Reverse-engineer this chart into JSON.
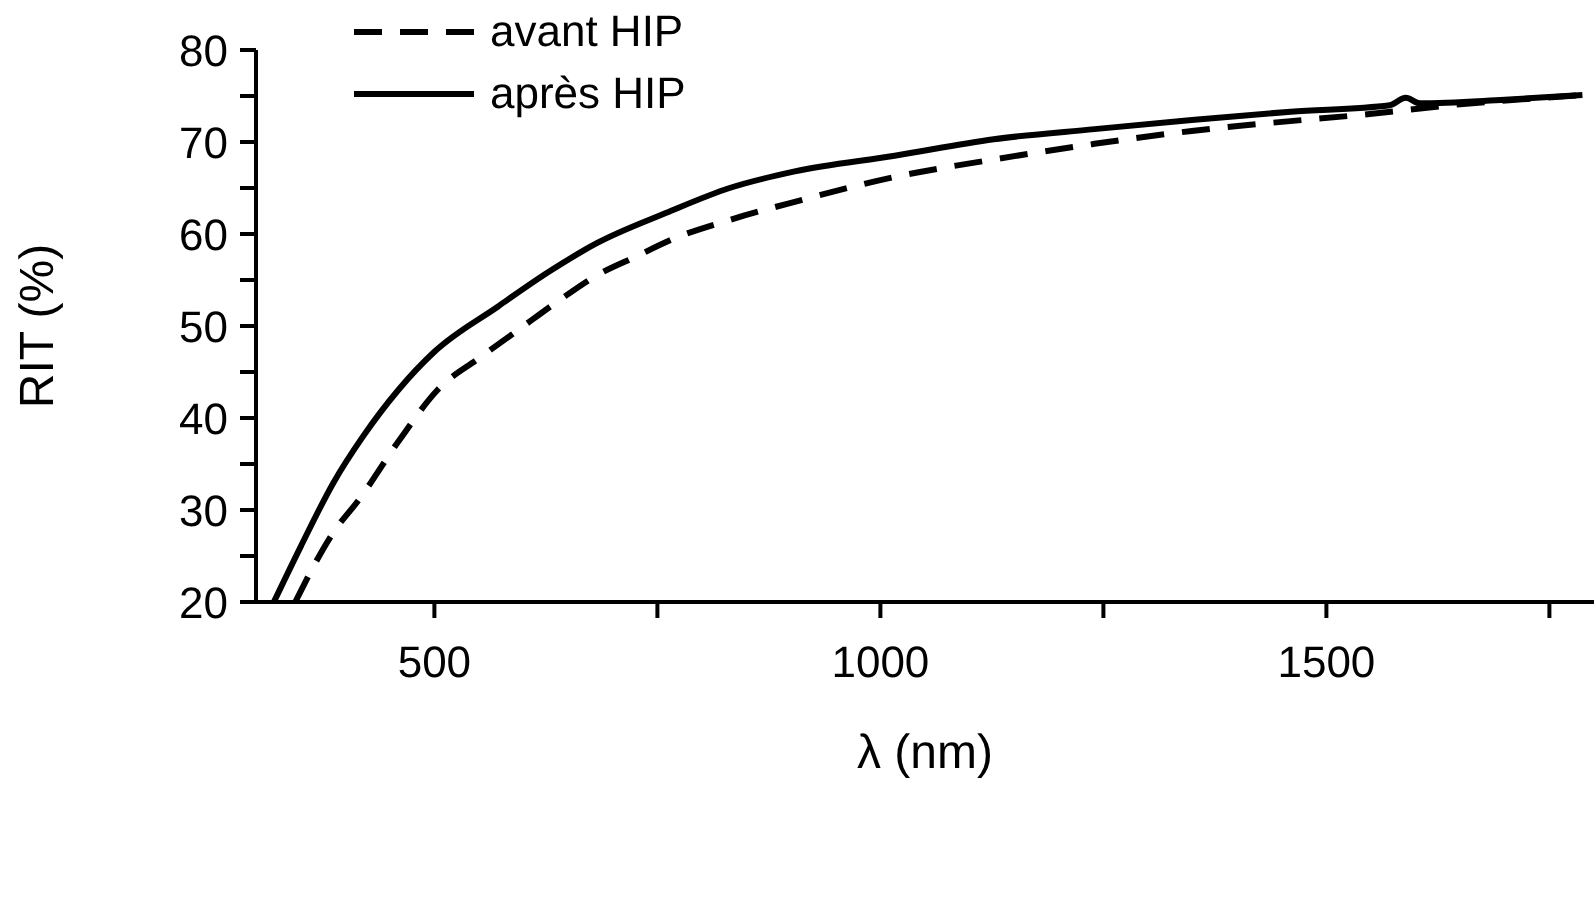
{
  "chart_data": {
    "type": "line",
    "xlabel": "λ (nm)",
    "ylabel": "RIT (%)",
    "xlim": [
      300,
      1800
    ],
    "ylim": [
      20,
      80
    ],
    "xticks": [
      500,
      {
        "value": 750,
        "label": null
      },
      1000,
      {
        "value": 1250,
        "label": null
      },
      1500,
      {
        "value": 1750,
        "label": null
      }
    ],
    "yticks": [
      20,
      {
        "value": 25,
        "label": null
      },
      30,
      {
        "value": 35,
        "label": null
      },
      40,
      {
        "value": 45,
        "label": null
      },
      50,
      {
        "value": 55,
        "label": null
      },
      60,
      {
        "value": 65,
        "label": null
      },
      70,
      {
        "value": 75,
        "label": null
      },
      80
    ],
    "legend": "top left",
    "marker": "none",
    "series": [
      {
        "name": "avant HIP",
        "color": "#000000",
        "line_style": "dashed",
        "x": [
          344,
          387,
          416,
          460,
          504,
          550,
          593,
          640,
          682,
          725,
          771,
          830,
          904,
          1016,
          1127,
          1240,
          1349,
          1440,
          1533,
          1650,
          1787
        ],
        "values": [
          20,
          27.6,
          31.2,
          37.5,
          43.1,
          46.5,
          49.5,
          52.8,
          55.5,
          57.5,
          59.6,
          61.5,
          63.5,
          66.2,
          68.1,
          69.8,
          71.2,
          72.1,
          72.9,
          74.1,
          75.1
        ]
      },
      {
        "name": "après HIP",
        "color": "#000000",
        "line_style": "solid",
        "x": [
          320,
          350,
          387,
          420,
          460,
          500,
          571,
          630,
          682,
          760,
          831,
          904,
          1016,
          1127,
          1240,
          1349,
          1460,
          1571,
          1589,
          1605,
          1700,
          1787
        ],
        "values": [
          20,
          26,
          33,
          38,
          43.1,
          47.2,
          52.1,
          56,
          59,
          62.3,
          65,
          66.8,
          68.5,
          70.3,
          71.4,
          72.4,
          73.3,
          74,
          74.8,
          74.2,
          74.6,
          75.1
        ]
      }
    ]
  }
}
